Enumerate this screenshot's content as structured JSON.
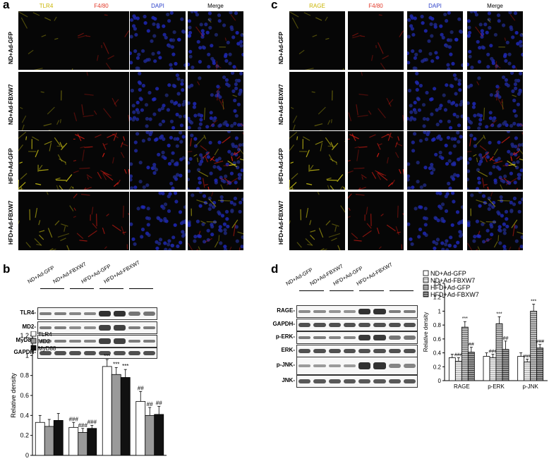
{
  "panels": {
    "a": "a",
    "b": "b",
    "c": "c",
    "d": "d"
  },
  "panel_a": {
    "columns": [
      {
        "label": "TLR4",
        "color": "#c9b400"
      },
      {
        "label": "F4/80",
        "color": "#e23a2a"
      },
      {
        "label": "DAPI",
        "color": "#2a3fc9"
      },
      {
        "label": "Merge",
        "color": "#000000"
      }
    ],
    "rows": [
      "ND+Ad-GFP",
      "ND+Ad-FBXW7",
      "HFD+Ad-GFP",
      "HFD+Ad-FBXW7"
    ]
  },
  "panel_c": {
    "columns": [
      {
        "label": "RAGE",
        "color": "#c9b400"
      },
      {
        "label": "F4/80",
        "color": "#e23a2a"
      },
      {
        "label": "DAPI",
        "color": "#2a3fc9"
      },
      {
        "label": "Merge",
        "color": "#000000"
      }
    ],
    "rows": [
      "ND+Ad-GFP",
      "ND+Ad-FBXW7",
      "HFD+Ad-GFP",
      "HFD+Ad-FBXW7"
    ]
  },
  "panel_b": {
    "lanes": [
      "ND+Ad-GFP",
      "ND+Ad-FBXW7",
      "HFD+Ad-GFP",
      "HFD+Ad-FBXW7"
    ],
    "blots": [
      "TLR4-",
      "MD2-",
      "MyD88-",
      "GAPDH-"
    ]
  },
  "panel_d": {
    "lanes": [
      "ND+Ad-GFP",
      "ND+Ad-FBXW7",
      "HFD+Ad-GFP",
      "HFD+Ad-FBXW7"
    ],
    "blots": [
      "RAGE-",
      "GAPDH-",
      "p-ERK-",
      "ERK-",
      "p-JNK-",
      "JNK-"
    ]
  },
  "chart_data": [
    {
      "type": "bar",
      "panel": "b",
      "ylabel": "Relative density",
      "ylim": [
        0,
        1.2
      ],
      "yticks": [
        "0",
        "0.2",
        "0.4",
        "0.6",
        "0.8",
        "1",
        "1.2"
      ],
      "groups": [
        "ND+Ad-GFP",
        "ND+Ad-FBXW7",
        "HFD+Ad-GFP",
        "HFD+Ad-FBXW7"
      ],
      "legend": "top-left",
      "series": [
        {
          "name": "TLR4",
          "color": "#ffffff",
          "values": [
            0.33,
            0.28,
            0.89,
            0.54
          ],
          "errors": [
            0.07,
            0.05,
            0.07,
            0.1
          ]
        },
        {
          "name": "MD2",
          "color": "#9a9a9a",
          "values": [
            0.29,
            0.23,
            0.81,
            0.4
          ],
          "errors": [
            0.07,
            0.04,
            0.07,
            0.08
          ]
        },
        {
          "name": "MyD88",
          "color": "#111111",
          "values": [
            0.35,
            0.27,
            0.78,
            0.41
          ],
          "errors": [
            0.07,
            0.03,
            0.08,
            0.08
          ]
        }
      ],
      "annotations": [
        [
          "",
          "",
          ""
        ],
        [
          "###",
          "###",
          "###"
        ],
        [
          "***",
          "***",
          "***"
        ],
        [
          "##",
          "##",
          "##"
        ]
      ]
    },
    {
      "type": "bar",
      "panel": "d",
      "ylabel": "Relative density",
      "ylim": [
        0,
        1.4
      ],
      "yticks": [
        "0",
        "0.2",
        "0.4",
        "0.6",
        "0.8",
        "1",
        "1.2",
        "1.4"
      ],
      "categories": [
        "RAGE",
        "p-ERK",
        "p-JNK"
      ],
      "legend": "top-right",
      "series": [
        {
          "name": "ND+Ad-GFP",
          "color": "#ffffff",
          "values": [
            0.33,
            0.35,
            0.35
          ],
          "errors": [
            0.05,
            0.05,
            0.05
          ]
        },
        {
          "name": "ND+Ad-FBXW7",
          "color": "#c8c8c8",
          "values": [
            0.28,
            0.33,
            0.27
          ],
          "errors": [
            0.05,
            0.05,
            0.04
          ]
        },
        {
          "name": "HFD+Ad-GFP",
          "color": "#909090",
          "values": [
            0.77,
            0.82,
            1.0
          ],
          "errors": [
            0.08,
            0.1,
            0.1
          ]
        },
        {
          "name": "HFD+Ad-FBXW7",
          "color": "#6a6a6a",
          "values": [
            0.41,
            0.45,
            0.47
          ],
          "errors": [
            0.07,
            0.12,
            0.05
          ]
        }
      ],
      "annotations": [
        [
          "",
          "###",
          "***",
          "##"
        ],
        [
          "",
          "###",
          "***",
          "##"
        ],
        [
          "",
          "###",
          "***",
          "###"
        ]
      ]
    }
  ]
}
